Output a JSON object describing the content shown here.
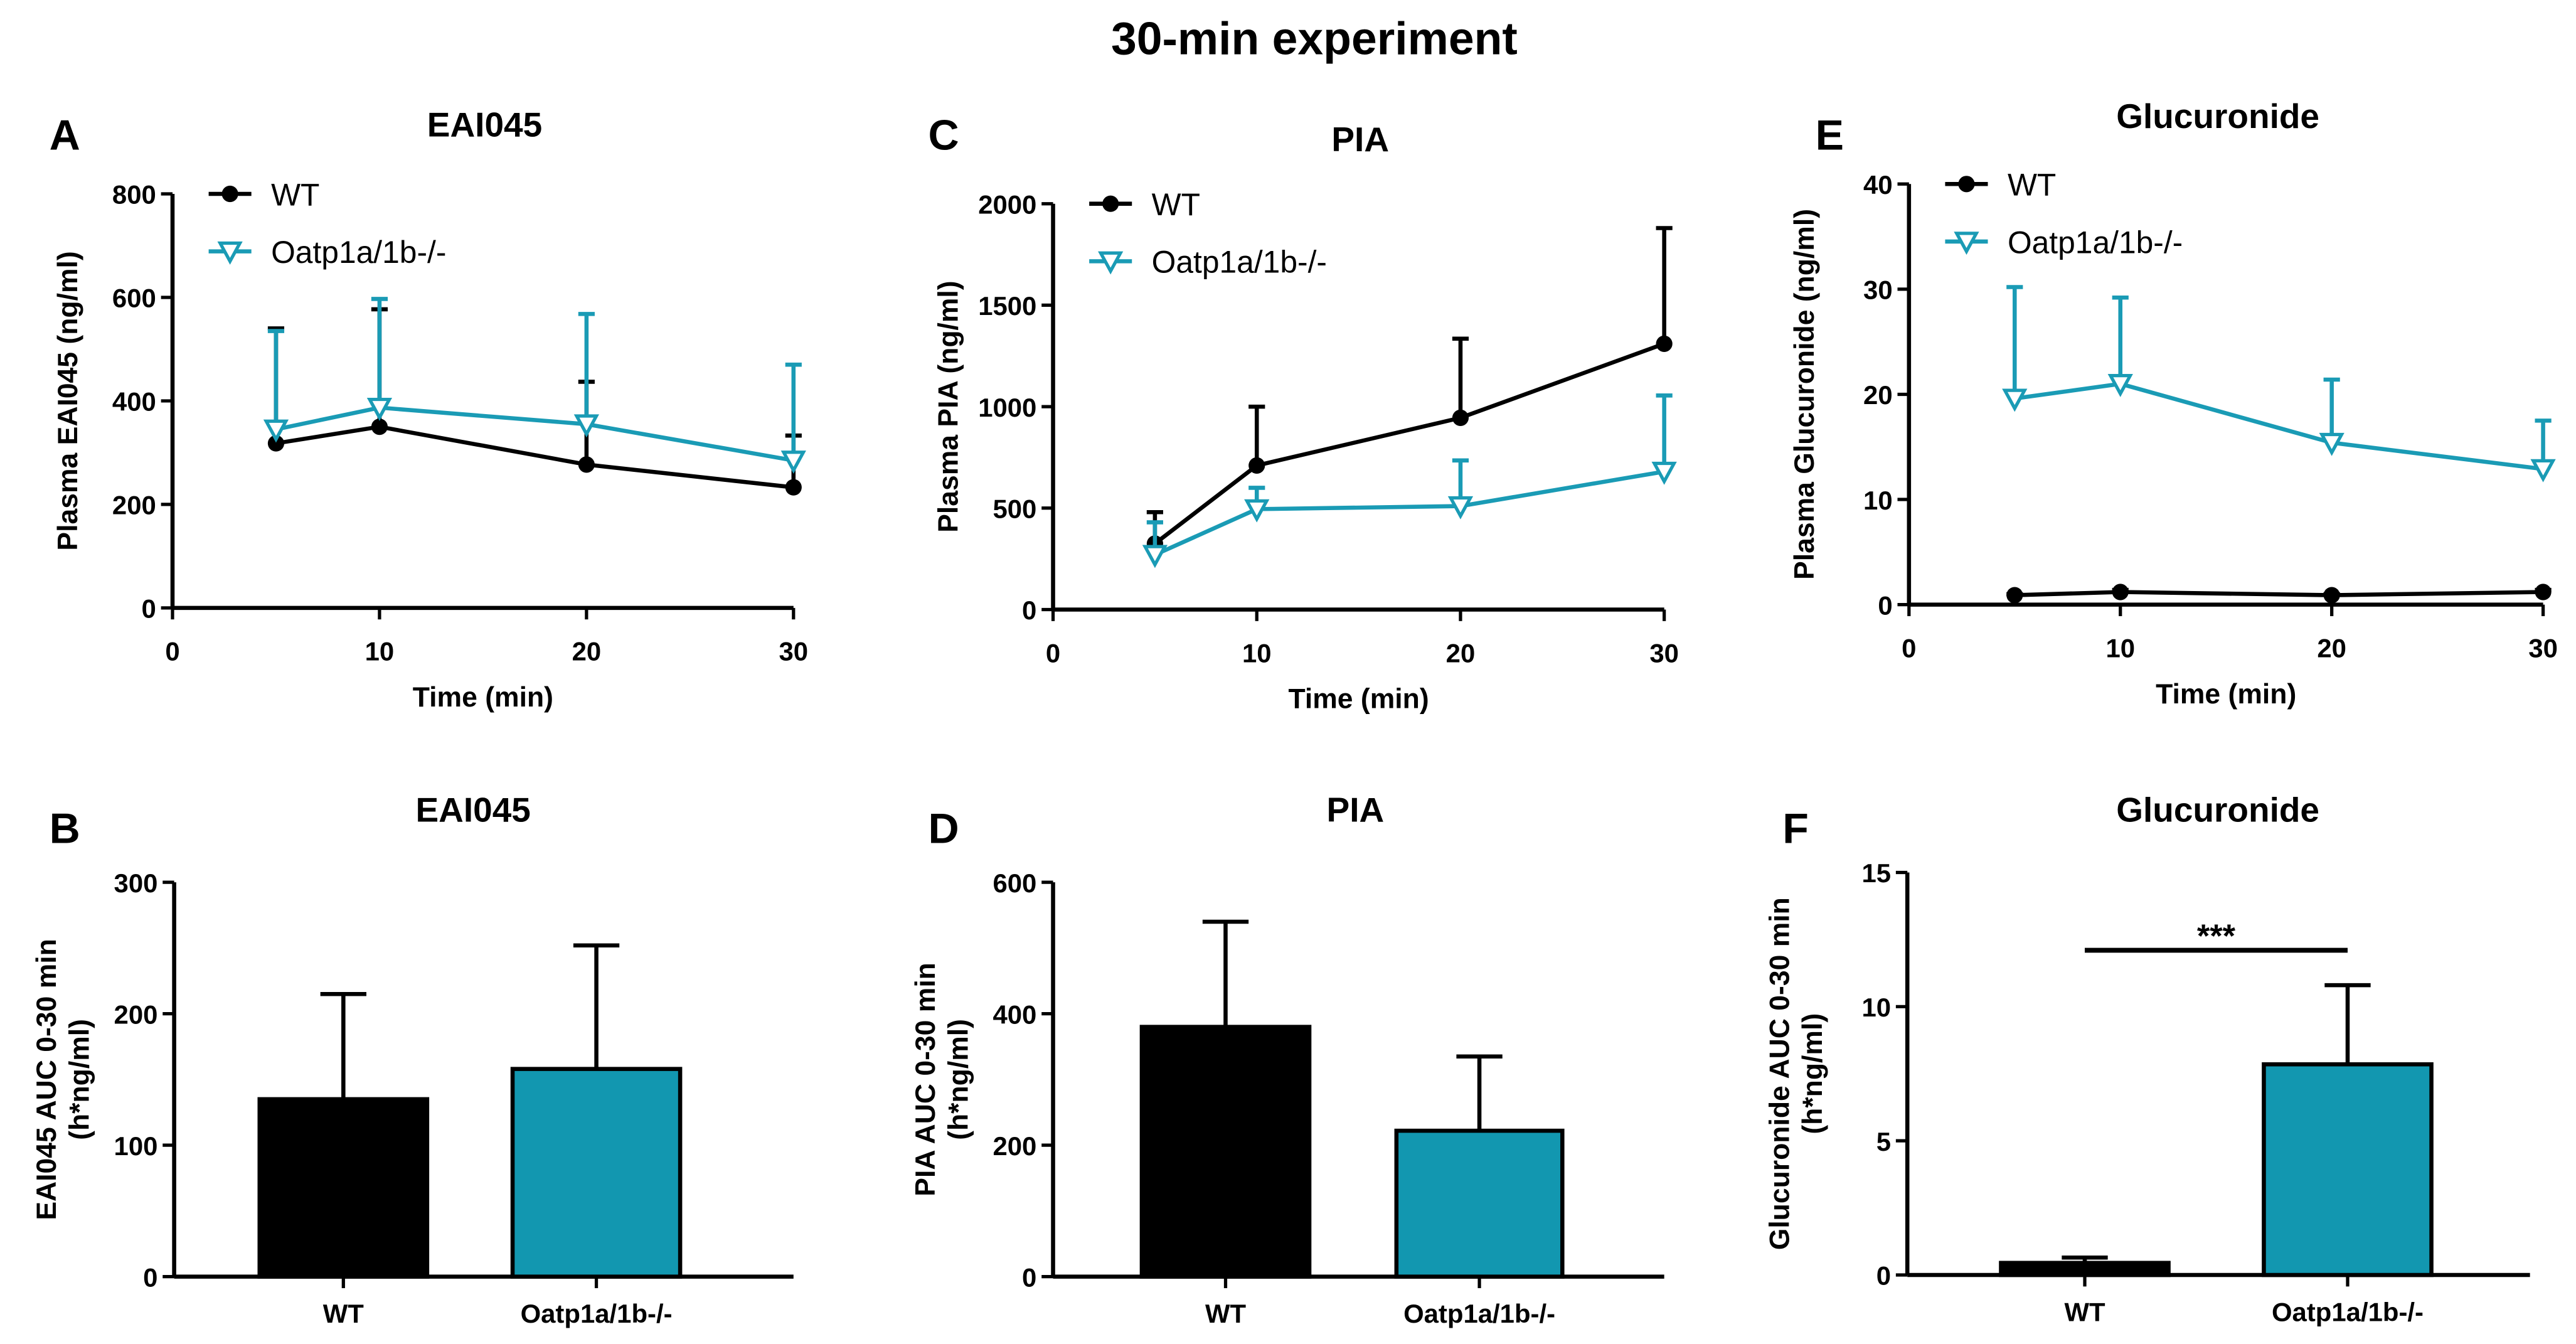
{
  "figure_title": "30-min experiment",
  "colors": {
    "wt": "#000000",
    "ko": "#1a9bb5",
    "ko_bar": "#1297b0"
  },
  "chart_data": [
    {
      "panel": "A",
      "type": "line",
      "title": "EAI045",
      "xlabel": "Time (min)",
      "ylabel": "Plasma EAI045 (ng/ml)",
      "xlim": [
        0,
        30
      ],
      "ylim": [
        0,
        800
      ],
      "xticks": [
        0,
        10,
        20,
        30
      ],
      "yticks": [
        0,
        200,
        400,
        600,
        800
      ],
      "legend": "top-left",
      "series": [
        {
          "name": "WT",
          "x": [
            5,
            10,
            20,
            30
          ],
          "y": [
            318,
            350,
            277,
            233
          ],
          "err_upper": [
            540,
            577,
            437,
            333
          ]
        },
        {
          "name": "Oatp1a/1b-/-",
          "x": [
            5,
            10,
            20,
            30
          ],
          "y": [
            345,
            387,
            355,
            285
          ],
          "err_upper": [
            535,
            597,
            568,
            470
          ]
        }
      ]
    },
    {
      "panel": "C",
      "type": "line",
      "title": "PIA",
      "xlabel": "Time (min)",
      "ylabel": "Plasma PIA (ng/ml)",
      "xlim": [
        0,
        30
      ],
      "ylim": [
        0,
        2000
      ],
      "xticks": [
        0,
        10,
        20,
        30
      ],
      "yticks": [
        0,
        500,
        1000,
        1500,
        2000
      ],
      "legend": "top-left",
      "series": [
        {
          "name": "WT",
          "x": [
            5,
            10,
            20,
            30
          ],
          "y": [
            325,
            710,
            945,
            1310
          ],
          "err_upper": [
            480,
            1000,
            1335,
            1880
          ]
        },
        {
          "name": "Oatp1a/1b-/-",
          "x": [
            5,
            10,
            20,
            30
          ],
          "y": [
            270,
            495,
            510,
            680
          ],
          "err_upper": [
            430,
            600,
            735,
            1055
          ]
        }
      ]
    },
    {
      "panel": "E",
      "type": "line",
      "title": "Glucuronide",
      "xlabel": "Time (min)",
      "ylabel": "Plasma Glucuronide (ng/ml)",
      "xlim": [
        0,
        30
      ],
      "ylim": [
        0,
        40
      ],
      "xticks": [
        0,
        10,
        20,
        30
      ],
      "yticks": [
        0,
        10,
        20,
        30,
        40
      ],
      "legend": "top-left",
      "series": [
        {
          "name": "WT",
          "x": [
            5,
            10,
            20,
            30
          ],
          "y": [
            0.9,
            1.2,
            0.9,
            1.2
          ],
          "err_upper": [
            1.0,
            1.4,
            1.0,
            1.4
          ]
        },
        {
          "name": "Oatp1a/1b-/-",
          "x": [
            5,
            10,
            20,
            30
          ],
          "y": [
            19.6,
            21.0,
            15.4,
            12.9
          ],
          "err_upper": [
            30.2,
            29.2,
            21.4,
            17.5
          ]
        }
      ]
    },
    {
      "panel": "B",
      "type": "bar",
      "title": "EAI045",
      "ylabel": "EAI045 AUC 0-30 min\n(h*ng/ml)",
      "categories": [
        "WT",
        "Oatp1a/1b-/-"
      ],
      "values": [
        135,
        158
      ],
      "err_upper": [
        215,
        252
      ],
      "ylim": [
        0,
        300
      ],
      "yticks": [
        0,
        100,
        200,
        300
      ]
    },
    {
      "panel": "D",
      "type": "bar",
      "title": "PIA",
      "ylabel": "PIA AUC 0-30 min\n(h*ng/ml)",
      "categories": [
        "WT",
        "Oatp1a/1b-/-"
      ],
      "values": [
        380,
        222
      ],
      "err_upper": [
        540,
        335
      ],
      "ylim": [
        0,
        600
      ],
      "yticks": [
        0,
        200,
        400,
        600
      ]
    },
    {
      "panel": "F",
      "type": "bar",
      "title": "Glucuronide",
      "ylabel": "Glucuronide AUC 0-30 min\n(h*ng/ml)",
      "categories": [
        "WT",
        "Oatp1a/1b-/-"
      ],
      "values": [
        0.45,
        7.85
      ],
      "err_upper": [
        0.65,
        10.8
      ],
      "ylim": [
        0,
        15
      ],
      "yticks": [
        0,
        5,
        10,
        15
      ],
      "annotation": "***"
    }
  ]
}
